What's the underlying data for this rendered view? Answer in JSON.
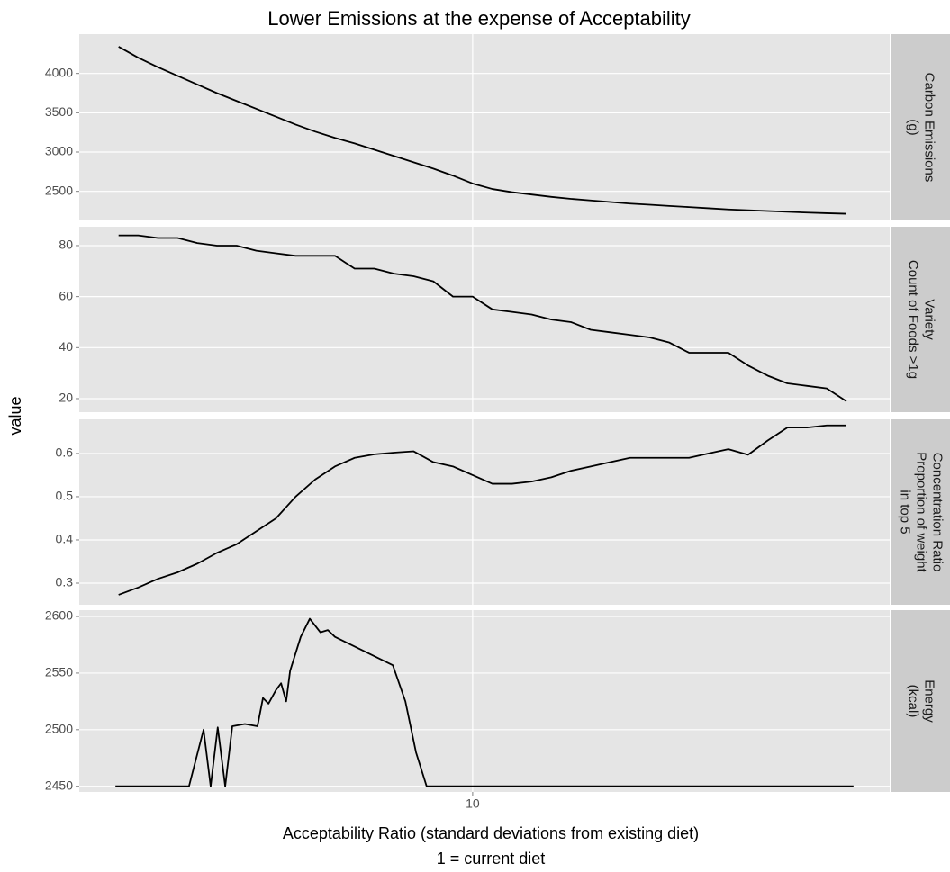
{
  "chart_data": {
    "type": "line",
    "title": "Lower Emissions at the expense of Acceptability",
    "xlabel": [
      "Acceptability Ratio (standard deviations from existing diet)",
      "1 = current diet"
    ],
    "ylabel": "value",
    "xlim": [
      0,
      20.6
    ],
    "xticks": [
      10
    ],
    "grid": true,
    "facets": [
      {
        "strip": [
          "Carbon Emissions",
          "(g)"
        ],
        "color": "#000000",
        "ylim": [
          2130,
          4500
        ],
        "yticks": [
          2500,
          3000,
          3500,
          4000
        ],
        "x": [
          1,
          1.5,
          2,
          2.5,
          3,
          3.5,
          4,
          4.5,
          5,
          5.5,
          6,
          6.5,
          7,
          7.5,
          8,
          8.5,
          9,
          9.5,
          10,
          10.5,
          11,
          11.5,
          12,
          12.5,
          13,
          13.5,
          14,
          14.5,
          15,
          15.5,
          16,
          16.5,
          17,
          17.5,
          18,
          18.5,
          19,
          19.5
        ],
        "values": [
          4340,
          4200,
          4080,
          3970,
          3860,
          3750,
          3650,
          3550,
          3450,
          3350,
          3260,
          3180,
          3110,
          3030,
          2950,
          2870,
          2790,
          2700,
          2600,
          2530,
          2490,
          2460,
          2430,
          2405,
          2385,
          2365,
          2345,
          2330,
          2315,
          2300,
          2285,
          2270,
          2260,
          2250,
          2240,
          2230,
          2222,
          2215
        ]
      },
      {
        "strip": [
          "Variety",
          "Count of Foods >1g"
        ],
        "color": "#000000",
        "ylim": [
          14.7,
          87.4
        ],
        "yticks": [
          20,
          40,
          60,
          80
        ],
        "x": [
          1,
          1.5,
          2,
          2.5,
          3,
          3.5,
          4,
          4.5,
          5,
          5.5,
          6,
          6.5,
          7,
          7.5,
          8,
          8.5,
          9,
          9.5,
          10,
          10.5,
          11,
          11.5,
          12,
          12.5,
          13,
          13.5,
          14,
          14.5,
          15,
          15.5,
          16,
          16.5,
          17,
          17.5,
          18,
          18.5,
          19,
          19.5
        ],
        "values": [
          84,
          84,
          83,
          83,
          81,
          80,
          80,
          78,
          77,
          76,
          76,
          76,
          71,
          71,
          69,
          68,
          66,
          60,
          60,
          55,
          54,
          53,
          51,
          50,
          47,
          46,
          45,
          44,
          42,
          38,
          38,
          38,
          33,
          29,
          26,
          25,
          24,
          19
        ]
      },
      {
        "strip": [
          "Concentration Ratio",
          "Proportion of weight",
          "in top 5"
        ],
        "color": "#000000",
        "ylim": [
          0.25,
          0.679
        ],
        "yticks": [
          0.3,
          0.4,
          0.5,
          0.6
        ],
        "x": [
          1,
          1.5,
          2,
          2.5,
          3,
          3.5,
          4,
          4.5,
          5,
          5.5,
          6,
          6.5,
          7,
          7.5,
          8,
          8.5,
          9,
          9.5,
          10,
          10.5,
          11,
          11.5,
          12,
          12.5,
          13,
          13.5,
          14,
          14.5,
          15,
          15.5,
          16,
          16.5,
          17,
          17.5,
          18,
          18.5,
          19,
          19.5
        ],
        "values": [
          0.273,
          0.29,
          0.31,
          0.325,
          0.345,
          0.37,
          0.39,
          0.42,
          0.45,
          0.5,
          0.54,
          0.57,
          0.59,
          0.598,
          0.602,
          0.605,
          0.58,
          0.57,
          0.55,
          0.53,
          0.53,
          0.535,
          0.545,
          0.56,
          0.57,
          0.58,
          0.59,
          0.59,
          0.59,
          0.59,
          0.6,
          0.61,
          0.597,
          0.63,
          0.66,
          0.66,
          0.665,
          0.665
        ]
      },
      {
        "strip": [
          "Energy",
          "(kcal)"
        ],
        "color": "#000000",
        "ylim": [
          2445,
          2605.6
        ],
        "yticks": [
          2450,
          2500,
          2550,
          2600
        ],
        "x": [
          0.92,
          2.79,
          3.16,
          3.34,
          3.52,
          3.71,
          3.89,
          4.21,
          4.53,
          4.67,
          4.81,
          5.0,
          5.13,
          5.26,
          5.36,
          5.63,
          5.86,
          6.13,
          6.32,
          6.5,
          7.97,
          8.29,
          8.56,
          8.83,
          19.68
        ],
        "values": [
          2450,
          2450,
          2500,
          2450,
          2502,
          2450,
          2503,
          2505,
          2503,
          2528,
          2523,
          2535,
          2541,
          2525,
          2552,
          2582,
          2598,
          2586,
          2588,
          2582,
          2557,
          2525,
          2480,
          2450,
          2450
        ]
      }
    ]
  }
}
